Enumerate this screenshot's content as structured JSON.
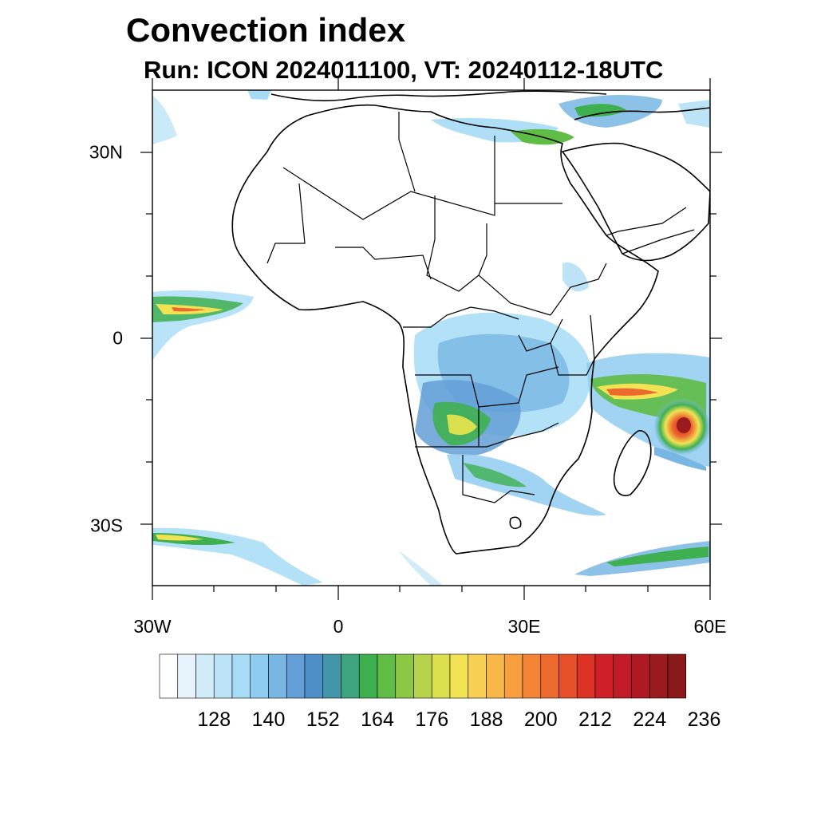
{
  "title": "Convection index",
  "subtitle": "Run: ICON 2024011100,  VT: 20240112-18UTC",
  "map": {
    "region": "Africa",
    "lat_labels": [
      "30N",
      "0",
      "30S"
    ],
    "lon_labels": [
      "30W",
      "0",
      "30E",
      "60E"
    ],
    "lat_range": [
      -40,
      40
    ],
    "lon_range": [
      -30,
      60
    ]
  },
  "colorbar": {
    "labels": [
      "128",
      "140",
      "152",
      "164",
      "176",
      "188",
      "200",
      "212",
      "224",
      "236"
    ],
    "colors": [
      "#ffffff",
      "#e8f4fb",
      "#d2ebf8",
      "#bde3f7",
      "#a6dcf6",
      "#8fcdf0",
      "#78b7e3",
      "#639fd6",
      "#4f8fc7",
      "#4196aa",
      "#3ea47f",
      "#3fb050",
      "#5fbc45",
      "#8cc845",
      "#b5d24a",
      "#dbe04f",
      "#f2e355",
      "#f7cf52",
      "#f8b849",
      "#f79f3f",
      "#f38436",
      "#ec6a2e",
      "#e65029",
      "#dd3226",
      "#cf2027",
      "#c01b27",
      "#ad1a23",
      "#9b1a1e",
      "#8a1a1a"
    ]
  }
}
